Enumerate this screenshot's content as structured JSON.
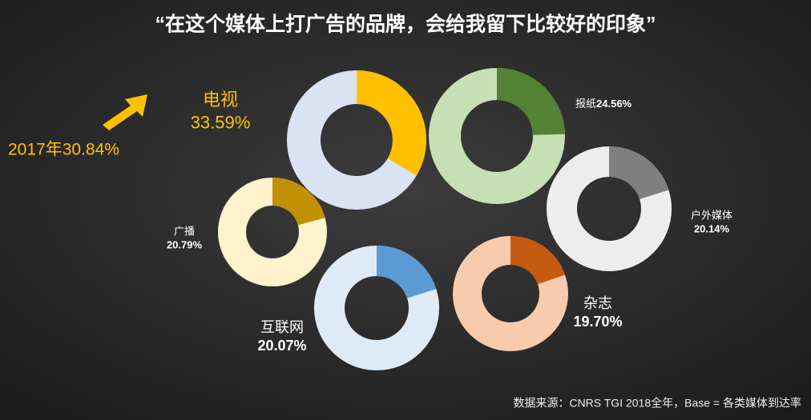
{
  "chart_data": {
    "type": "donut",
    "title": "“在这个媒体上打广告的品牌，会给我留下比较好的印象”",
    "categories": [
      "电视",
      "报纸",
      "户外媒体",
      "广播",
      "互联网",
      "杂志"
    ],
    "values": [
      33.59,
      24.56,
      20.14,
      20.79,
      20.07,
      19.7
    ],
    "value_labels": [
      "33.59%",
      "24.56%",
      "20.14%",
      "20.79%",
      "20.07%",
      "19.70%"
    ],
    "colors": [
      "#ffc000",
      "#548235",
      "#7f7f7f",
      "#bf9000",
      "#5b9bd5",
      "#c55a11"
    ],
    "track_colors": [
      "#dae3f3",
      "#c5e0b4",
      "#ededed",
      "#fff2cc",
      "#deebf7",
      "#f8cbad"
    ],
    "annotation": "2017年30.84%",
    "source": "数据来源：CNRS TGI 2018全年，Base = 各类媒体到达率"
  }
}
